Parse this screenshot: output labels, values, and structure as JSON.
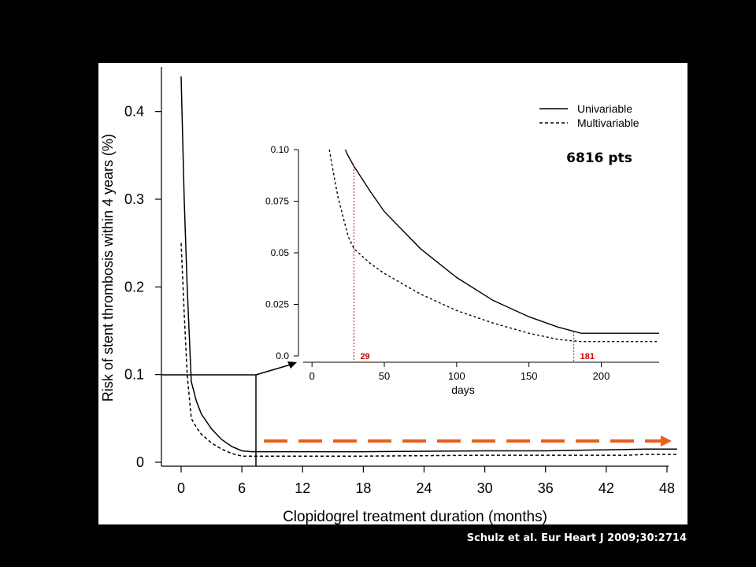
{
  "citation": "Schulz et al. Eur Heart J 2009;30:2714",
  "colors": {
    "background": "#000000",
    "panel": "#ffffff",
    "line": "#000000",
    "annotation": "#cc0000",
    "arrow": "#e8601c"
  },
  "chart_data": [
    {
      "type": "line",
      "title": "",
      "xlabel": "Clopidogrel treatment duration (months)",
      "ylabel": "Risk of stent thrombosis within 4 years (%)",
      "xlim": [
        0,
        48
      ],
      "ylim": [
        0,
        0.45
      ],
      "xticks": [
        0,
        6,
        12,
        18,
        24,
        30,
        36,
        42,
        48
      ],
      "yticks": [
        0,
        0.1,
        0.2,
        0.3,
        0.4
      ],
      "ytick_labels": [
        "0",
        "0.1",
        "0.2",
        "0.3",
        "0.4"
      ],
      "legend": {
        "position": "top-right",
        "entries": [
          "Univariable",
          "Multivariable"
        ]
      },
      "annotation": "6816 pts",
      "series": [
        {
          "name": "Univariable",
          "style": "solid",
          "x": [
            0,
            0.3,
            0.6,
            1,
            1.5,
            2,
            3,
            4,
            5,
            6,
            7,
            12,
            18,
            30,
            36,
            46,
            49
          ],
          "y": [
            0.44,
            0.3,
            0.2,
            0.092,
            0.07,
            0.055,
            0.038,
            0.026,
            0.018,
            0.013,
            0.012,
            0.012,
            0.012,
            0.013,
            0.013,
            0.015,
            0.015
          ]
        },
        {
          "name": "Multivariable",
          "style": "dashed",
          "x": [
            0,
            0.3,
            0.6,
            1,
            1.5,
            2,
            3,
            4,
            5,
            6,
            7,
            12,
            18,
            30,
            36,
            44,
            46,
            49
          ],
          "y": [
            0.25,
            0.17,
            0.1,
            0.05,
            0.04,
            0.032,
            0.022,
            0.015,
            0.01,
            0.007,
            0.007,
            0.007,
            0.007,
            0.008,
            0.008,
            0.008,
            0.009,
            0.009
          ]
        }
      ]
    },
    {
      "type": "line",
      "title": "",
      "xlabel": "days",
      "ylabel": "",
      "xlim": [
        -5,
        240
      ],
      "ylim": [
        0,
        0.1
      ],
      "xticks": [
        0,
        50,
        100,
        150,
        200
      ],
      "yticks": [
        0,
        0.025,
        0.05,
        0.075,
        0.1
      ],
      "ytick_labels": [
        "0.0",
        "0.025",
        "0.05",
        "0.075",
        "0.10"
      ],
      "markers": [
        {
          "x": 29,
          "label": "29"
        },
        {
          "x": 181,
          "label": "181"
        }
      ],
      "series": [
        {
          "name": "Univariable",
          "style": "solid",
          "x": [
            23,
            25,
            29,
            40,
            50,
            75,
            100,
            125,
            150,
            170,
            186,
            200,
            240
          ],
          "y": [
            0.1,
            0.097,
            0.092,
            0.08,
            0.07,
            0.052,
            0.038,
            0.027,
            0.019,
            0.014,
            0.011,
            0.011,
            0.011
          ],
          "plateau_from": 186
        },
        {
          "name": "Multivariable",
          "style": "dashed",
          "x": [
            12,
            15,
            18,
            22,
            25,
            29,
            40,
            50,
            75,
            100,
            125,
            150,
            170,
            186,
            200,
            240
          ],
          "y": [
            0.1,
            0.088,
            0.077,
            0.066,
            0.058,
            0.052,
            0.045,
            0.04,
            0.03,
            0.022,
            0.016,
            0.011,
            0.008,
            0.007,
            0.007,
            0.007
          ],
          "plateau_from": 186
        }
      ]
    }
  ]
}
